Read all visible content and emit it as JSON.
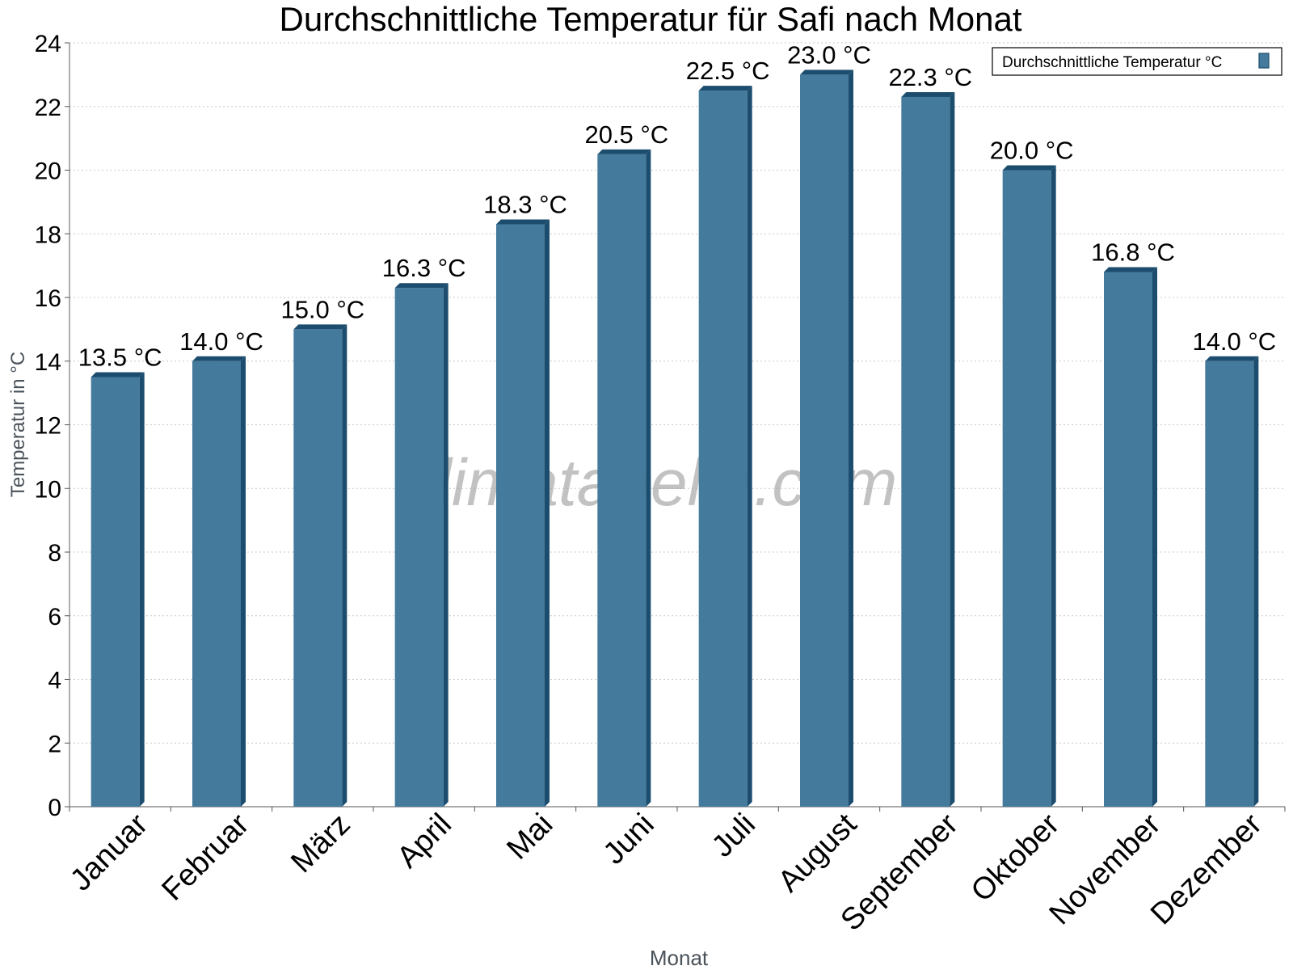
{
  "chart_data": {
    "type": "bar",
    "title": "Durchschnittliche Temperatur für Safi nach Monat",
    "xlabel": "Monat",
    "ylabel": "Temperatur in °C",
    "categories": [
      "Januar",
      "Februar",
      "März",
      "April",
      "Mai",
      "Juni",
      "Juli",
      "August",
      "September",
      "Oktober",
      "November",
      "Dezember"
    ],
    "series": [
      {
        "name": "Durchschnittliche Temperatur °C",
        "values": [
          13.5,
          14.0,
          15.0,
          16.3,
          18.3,
          20.5,
          22.5,
          23.0,
          22.3,
          20.0,
          16.8,
          14.0
        ],
        "labels": [
          "13.5 °C",
          "14.0 °C",
          "15.0 °C",
          "16.3 °C",
          "18.3 °C",
          "20.5 °C",
          "22.5 °C",
          "23.0 °C",
          "22.3 °C",
          "20.0 °C",
          "16.8 °C",
          "14.0 °C"
        ]
      }
    ],
    "ylim": [
      0,
      24
    ],
    "yticks": [
      0,
      2,
      4,
      6,
      8,
      10,
      12,
      14,
      16,
      18,
      20,
      22,
      24
    ],
    "grid": true,
    "legend_position": "top-right",
    "colors": {
      "bar": "#447a9c",
      "bar_dark": "#1d4d6e"
    },
    "watermark": "klimatabelle.com"
  }
}
